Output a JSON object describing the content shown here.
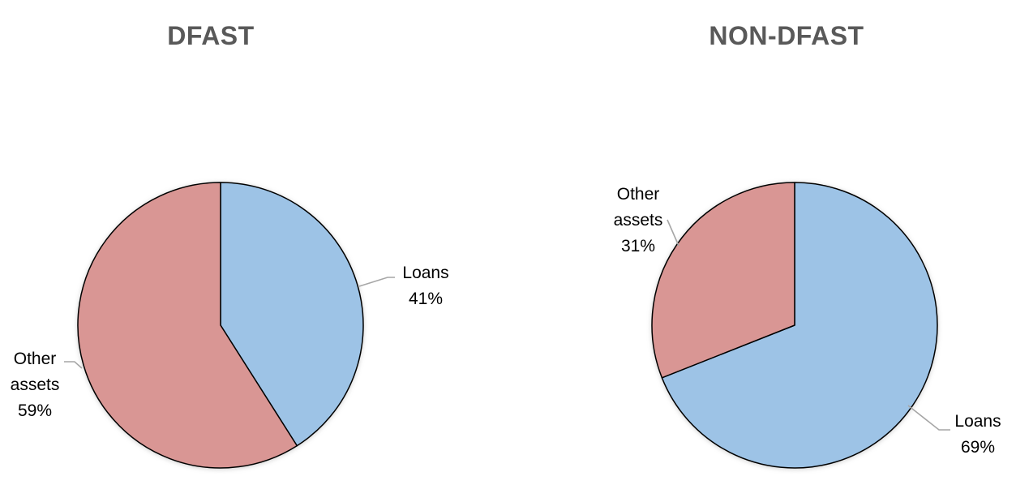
{
  "style": {
    "background": "#FFFFFF",
    "title_color": "#595959",
    "label_color": "#000000",
    "leader_line_color": "#A6A6A6",
    "slice_outline_color": "#000000",
    "loans_color": "#9DC3E6",
    "other_assets_color": "#D99694"
  },
  "chart_data": [
    {
      "type": "pie",
      "title": "DFAST",
      "categories": [
        "Loans",
        "Other assets"
      ],
      "values": [
        41,
        59
      ],
      "slices": [
        {
          "label": "Loans",
          "value": 41,
          "pct_label": "41%",
          "color": "#9DC3E6"
        },
        {
          "label": "Other assets",
          "value": 59,
          "pct_label": "59%",
          "color": "#D99694"
        }
      ],
      "callouts": [
        {
          "for": "Loans",
          "lines": [
            "Loans",
            "41%"
          ]
        },
        {
          "for": "Other assets",
          "lines": [
            "Other",
            "assets",
            "59%"
          ]
        }
      ],
      "start_angle_deg": 0,
      "direction": "clockwise",
      "legend": "none",
      "label_style": "outside-callouts-with-leader-lines"
    },
    {
      "type": "pie",
      "title": "NON-DFAST",
      "categories": [
        "Loans",
        "Other assets"
      ],
      "values": [
        69,
        31
      ],
      "slices": [
        {
          "label": "Loans",
          "value": 69,
          "pct_label": "69%",
          "color": "#9DC3E6"
        },
        {
          "label": "Other assets",
          "value": 31,
          "pct_label": "31%",
          "color": "#D99694"
        }
      ],
      "callouts": [
        {
          "for": "Other assets",
          "lines": [
            "Other",
            "assets",
            "31%"
          ]
        },
        {
          "for": "Loans",
          "lines": [
            "Loans",
            "69%"
          ]
        }
      ],
      "start_angle_deg": 0,
      "direction": "clockwise",
      "legend": "none",
      "label_style": "outside-callouts-with-leader-lines"
    }
  ]
}
